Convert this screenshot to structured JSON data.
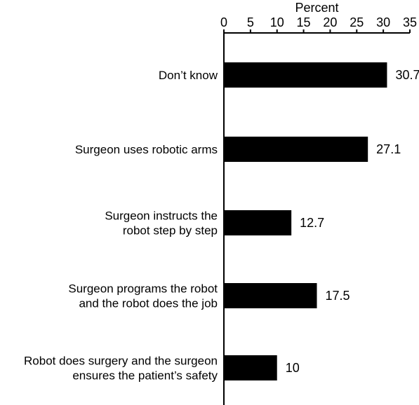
{
  "chart_data": {
    "type": "bar",
    "orientation": "horizontal",
    "title": "",
    "xlabel": "Percent",
    "ylabel": "",
    "xaxis_position": "top",
    "xlim": [
      0,
      35
    ],
    "xticks": [
      0,
      5,
      10,
      15,
      20,
      25,
      30,
      35
    ],
    "grid": false,
    "legend": "none",
    "bar_color": "#000000",
    "categories": [
      [
        "Don’t know"
      ],
      [
        "Surgeon uses robotic arms"
      ],
      [
        "Surgeon instructs the",
        "robot step by step"
      ],
      [
        "Surgeon programs the robot",
        "and the robot does the job"
      ],
      [
        "Robot does surgery and the surgeon",
        "ensures the patient’s safety"
      ]
    ],
    "values": [
      30.7,
      27.1,
      12.7,
      17.5,
      10
    ],
    "data_labels": [
      "30.7",
      "27.1",
      "12.7",
      "17.5",
      "10"
    ]
  }
}
